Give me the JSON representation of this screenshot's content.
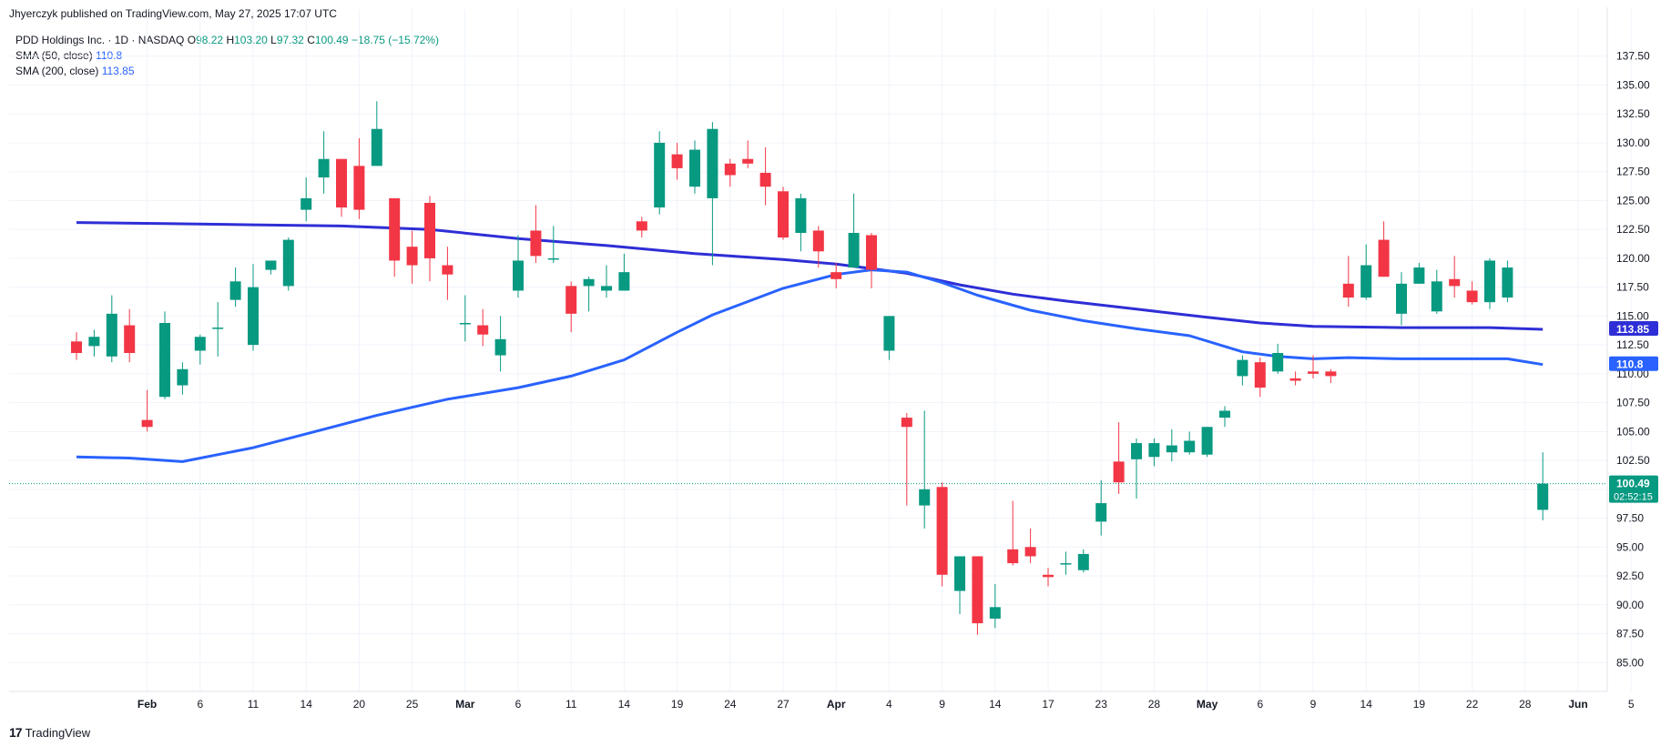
{
  "header": {
    "published": "Jhyerczyk published on TradingView.com, May 27, 2025 17:07 UTC"
  },
  "legend": {
    "symbol": "PDD Holdings Inc. · 1D · NASDAQ",
    "ohlc": [
      {
        "key": "O",
        "value": "98.22"
      },
      {
        "key": "H",
        "value": "103.20"
      },
      {
        "key": "L",
        "value": "97.32"
      },
      {
        "key": "C",
        "value": "100.49"
      }
    ],
    "change": "−18.75 (−15.72%)",
    "sma50": {
      "label": "SMA (50, close)",
      "value": "110.8"
    },
    "sma200": {
      "label": "SMA (200, close)",
      "value": "113.85"
    }
  },
  "footer": {
    "logo": "17",
    "brand": "TradingView"
  },
  "colors": {
    "up": "#089981",
    "down": "#f23645",
    "sma50": "#2962ff",
    "sma200": "#2e2ed6",
    "axis_text": "#131722"
  },
  "chart_data": {
    "type": "candlestick",
    "ylim": [
      82.5,
      140
    ],
    "y_ticks": [
      85,
      87.5,
      90,
      92.5,
      95,
      97.5,
      100,
      102.5,
      105,
      107.5,
      110,
      112.5,
      115,
      117.5,
      120,
      122.5,
      125,
      127.5,
      130,
      132.5,
      135,
      137.5
    ],
    "x_ticks": [
      {
        "i": 4,
        "label": "Feb"
      },
      {
        "i": 7,
        "label": "6"
      },
      {
        "i": 10,
        "label": "11"
      },
      {
        "i": 13,
        "label": "14"
      },
      {
        "i": 16,
        "label": "20"
      },
      {
        "i": 19,
        "label": "25"
      },
      {
        "i": 22,
        "label": "Mar"
      },
      {
        "i": 25,
        "label": "6"
      },
      {
        "i": 28,
        "label": "11"
      },
      {
        "i": 31,
        "label": "14"
      },
      {
        "i": 34,
        "label": "19"
      },
      {
        "i": 37,
        "label": "24"
      },
      {
        "i": 40,
        "label": "27"
      },
      {
        "i": 43,
        "label": "Apr"
      },
      {
        "i": 46,
        "label": "4"
      },
      {
        "i": 49,
        "label": "9"
      },
      {
        "i": 52,
        "label": "14"
      },
      {
        "i": 55,
        "label": "17"
      },
      {
        "i": 58,
        "label": "23"
      },
      {
        "i": 61,
        "label": "28"
      },
      {
        "i": 64,
        "label": "May"
      },
      {
        "i": 67,
        "label": "6"
      },
      {
        "i": 70,
        "label": "9"
      },
      {
        "i": 73,
        "label": "14"
      },
      {
        "i": 76,
        "label": "19"
      },
      {
        "i": 79,
        "label": "22"
      },
      {
        "i": 82,
        "label": "28"
      },
      {
        "i": 85,
        "label": "Jun"
      },
      {
        "i": 88,
        "label": "5"
      }
    ],
    "candles": [
      [
        112.8,
        113.6,
        111.2,
        111.8
      ],
      [
        112.4,
        113.8,
        111.5,
        113.2
      ],
      [
        111.5,
        116.8,
        111.0,
        115.2
      ],
      [
        114.2,
        115.6,
        111.0,
        111.8
      ],
      [
        106.0,
        108.6,
        105.0,
        105.4
      ],
      [
        108.0,
        115.4,
        107.8,
        114.4
      ],
      [
        109.0,
        111.0,
        108.2,
        110.4
      ],
      [
        112.0,
        113.4,
        110.8,
        113.2
      ],
      [
        114.0,
        116.2,
        111.5,
        114.0
      ],
      [
        116.4,
        119.2,
        115.8,
        118.0
      ],
      [
        112.5,
        119.5,
        112.0,
        117.5
      ],
      [
        119.0,
        119.8,
        118.6,
        119.8
      ],
      [
        117.6,
        121.8,
        117.2,
        121.6
      ],
      [
        124.2,
        127.0,
        123.2,
        125.2
      ],
      [
        127.0,
        131.0,
        125.6,
        128.6
      ],
      [
        128.6,
        128.6,
        123.6,
        124.4
      ],
      [
        128.0,
        130.4,
        123.4,
        124.2
      ],
      [
        128.0,
        133.6,
        128.0,
        131.2
      ],
      [
        125.2,
        125.2,
        118.4,
        119.8
      ],
      [
        121.0,
        122.4,
        117.8,
        119.4
      ],
      [
        124.8,
        125.4,
        118.0,
        120.0
      ],
      [
        119.4,
        121.0,
        116.4,
        118.6
      ],
      [
        114.4,
        116.8,
        112.8,
        114.4
      ],
      [
        114.2,
        115.6,
        112.4,
        113.4
      ],
      [
        111.6,
        115.0,
        110.2,
        113.0
      ],
      [
        117.2,
        122.0,
        116.6,
        119.8
      ],
      [
        122.4,
        124.6,
        119.6,
        120.2
      ],
      [
        120.0,
        122.8,
        119.6,
        120.0
      ],
      [
        117.6,
        118.0,
        113.6,
        115.2
      ],
      [
        117.6,
        118.4,
        115.4,
        118.2
      ],
      [
        117.2,
        119.4,
        116.6,
        117.6
      ],
      [
        117.2,
        120.4,
        117.2,
        118.8
      ],
      [
        123.2,
        123.6,
        121.8,
        122.4
      ],
      [
        124.4,
        131.0,
        123.8,
        130.0
      ],
      [
        129.0,
        130.0,
        126.8,
        127.8
      ],
      [
        126.2,
        130.2,
        125.6,
        129.4
      ],
      [
        125.2,
        131.8,
        119.4,
        131.2
      ],
      [
        128.2,
        128.6,
        126.2,
        127.2
      ],
      [
        128.6,
        130.2,
        127.8,
        128.2
      ],
      [
        127.4,
        129.6,
        124.6,
        126.2
      ],
      [
        125.8,
        126.2,
        121.6,
        121.8
      ],
      [
        122.2,
        125.6,
        120.6,
        125.2
      ],
      [
        122.4,
        122.8,
        119.2,
        120.6
      ],
      [
        118.8,
        119.6,
        117.4,
        118.2
      ],
      [
        119.2,
        125.6,
        119.2,
        122.2
      ],
      [
        122.0,
        122.2,
        117.4,
        119.0
      ],
      [
        112.0,
        115.0,
        111.2,
        115.0
      ],
      [
        106.2,
        106.6,
        98.6,
        105.4
      ],
      [
        98.6,
        106.8,
        96.6,
        100.0
      ],
      [
        100.2,
        100.6,
        91.6,
        92.6
      ],
      [
        91.2,
        94.2,
        89.2,
        94.2
      ],
      [
        94.2,
        94.2,
        87.4,
        88.4
      ],
      [
        88.8,
        91.8,
        88.0,
        89.8
      ],
      [
        94.8,
        99.0,
        93.4,
        93.6
      ],
      [
        95.0,
        96.6,
        93.6,
        94.2
      ],
      [
        92.6,
        93.2,
        91.6,
        92.4
      ],
      [
        93.6,
        94.6,
        92.6,
        93.6
      ],
      [
        93.0,
        94.8,
        92.8,
        94.4
      ],
      [
        97.2,
        100.8,
        96.0,
        98.8
      ],
      [
        102.4,
        105.8,
        99.6,
        100.6
      ],
      [
        102.6,
        104.4,
        99.2,
        104.0
      ],
      [
        102.8,
        104.4,
        102.0,
        104.0
      ],
      [
        103.2,
        105.2,
        102.4,
        103.8
      ],
      [
        103.2,
        105.0,
        103.0,
        104.2
      ],
      [
        103.0,
        105.4,
        102.8,
        105.4
      ],
      [
        106.2,
        107.2,
        105.4,
        106.8
      ],
      [
        109.8,
        111.6,
        109.0,
        111.2
      ],
      [
        111.0,
        111.4,
        108.0,
        108.8
      ],
      [
        110.2,
        112.6,
        110.0,
        111.8
      ],
      [
        109.6,
        110.2,
        109.0,
        109.4
      ],
      [
        110.2,
        111.6,
        109.6,
        110.0
      ],
      [
        110.2,
        110.4,
        109.2,
        109.8
      ],
      [
        117.8,
        120.2,
        115.8,
        116.6
      ],
      [
        116.6,
        121.2,
        116.4,
        119.4
      ],
      [
        121.6,
        123.2,
        118.4,
        118.4
      ],
      [
        115.2,
        118.8,
        114.2,
        117.8
      ],
      [
        117.8,
        119.6,
        117.8,
        119.2
      ],
      [
        115.4,
        119.0,
        115.2,
        118.0
      ],
      [
        118.2,
        120.2,
        116.6,
        117.6
      ],
      [
        117.2,
        118.0,
        116.0,
        116.2
      ],
      [
        116.2,
        120.0,
        115.6,
        119.8
      ],
      [
        116.6,
        119.8,
        116.2,
        119.2
      ],
      [
        98.22,
        103.2,
        97.32,
        100.49
      ]
    ],
    "candle_index": [
      0,
      1,
      2,
      3,
      4,
      5,
      6,
      7,
      8,
      9,
      10,
      11,
      12,
      13,
      14,
      15,
      16,
      17,
      18,
      19,
      20,
      21,
      22,
      23,
      24,
      25,
      26,
      27,
      28,
      29,
      30,
      31,
      32,
      33,
      34,
      35,
      36,
      37,
      38,
      39,
      40,
      41,
      42,
      43,
      44,
      45,
      46,
      47,
      48,
      49,
      50,
      51,
      52,
      53,
      54,
      55,
      56,
      57,
      58,
      59,
      60,
      61,
      62,
      63,
      64,
      65,
      66,
      67,
      68,
      69,
      70,
      71,
      72,
      73,
      74,
      75,
      76,
      77,
      78,
      79,
      80,
      81,
      83
    ],
    "sma50": {
      "label": "SMA (50, close)",
      "points": [
        [
          0,
          102.8
        ],
        [
          3,
          102.7
        ],
        [
          6,
          102.4
        ],
        [
          10,
          103.6
        ],
        [
          13,
          104.8
        ],
        [
          17,
          106.4
        ],
        [
          21,
          107.8
        ],
        [
          25,
          108.8
        ],
        [
          28,
          109.8
        ],
        [
          31,
          111.2
        ],
        [
          34,
          113.6
        ],
        [
          36,
          115.1
        ],
        [
          40,
          117.4
        ],
        [
          43,
          118.6
        ],
        [
          45,
          119.0
        ],
        [
          47,
          118.8
        ],
        [
          49,
          117.9
        ],
        [
          51,
          116.8
        ],
        [
          54,
          115.5
        ],
        [
          57,
          114.6
        ],
        [
          60,
          113.9
        ],
        [
          63,
          113.3
        ],
        [
          66,
          111.9
        ],
        [
          68,
          111.5
        ],
        [
          70,
          111.3
        ],
        [
          72,
          111.4
        ],
        [
          75,
          111.3
        ],
        [
          78,
          111.3
        ],
        [
          81,
          111.3
        ],
        [
          83,
          110.8
        ]
      ]
    },
    "sma200": {
      "label": "SMA (200, close)",
      "points": [
        [
          0,
          123.1
        ],
        [
          5,
          123.0
        ],
        [
          10,
          122.9
        ],
        [
          15,
          122.8
        ],
        [
          20,
          122.5
        ],
        [
          25,
          121.7
        ],
        [
          30,
          121.1
        ],
        [
          35,
          120.4
        ],
        [
          40,
          119.9
        ],
        [
          43,
          119.5
        ],
        [
          45,
          119.1
        ],
        [
          47,
          118.7
        ],
        [
          50,
          117.7
        ],
        [
          53,
          116.9
        ],
        [
          56,
          116.3
        ],
        [
          60,
          115.6
        ],
        [
          64,
          114.9
        ],
        [
          67,
          114.4
        ],
        [
          70,
          114.1
        ],
        [
          75,
          114.0
        ],
        [
          80,
          114.0
        ],
        [
          83,
          113.85
        ]
      ]
    },
    "last_price": {
      "value": "100.49",
      "countdown": "02:52:15"
    },
    "sma50_label": "110.8",
    "sma200_label": "113.85"
  }
}
